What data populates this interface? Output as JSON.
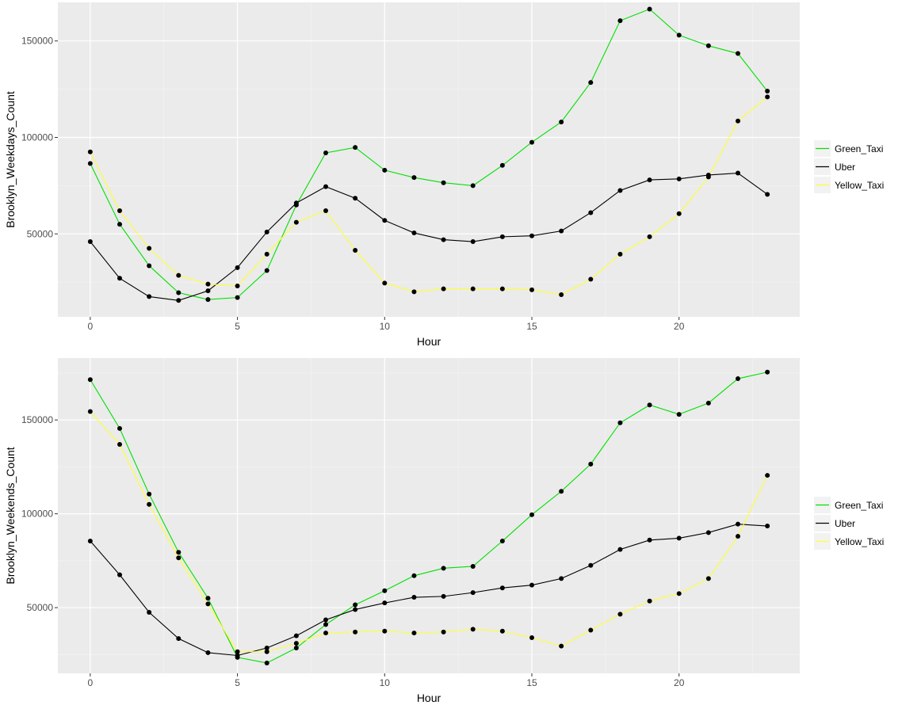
{
  "chart_data": [
    {
      "type": "line",
      "xlabel": "Hour",
      "ylabel": "Brooklyn_Weekdays_Count",
      "xlim": [
        -1.1,
        24.1
      ],
      "ylim": [
        7000,
        170000
      ],
      "xticks": [
        0,
        5,
        10,
        15,
        20
      ],
      "xtick_labels": [
        "0",
        "5",
        "10",
        "15",
        "20"
      ],
      "yticks": [
        50000,
        100000,
        150000
      ],
      "ytick_labels": [
        "50000",
        "100000",
        "150000"
      ],
      "grid": true,
      "legend_position": "right",
      "x": [
        0,
        1,
        2,
        3,
        4,
        5,
        6,
        7,
        8,
        9,
        10,
        11,
        12,
        13,
        14,
        15,
        16,
        17,
        18,
        19,
        20,
        21,
        22,
        23
      ],
      "series": [
        {
          "name": "Green_Taxi",
          "color": "#00e000",
          "values": [
            86500,
            55000,
            33500,
            19500,
            16000,
            17000,
            31000,
            65000,
            92000,
            94800,
            83000,
            79200,
            76500,
            75000,
            85500,
            97500,
            108000,
            128500,
            160500,
            166500,
            153000,
            147500,
            143500,
            124000
          ]
        },
        {
          "name": "Uber",
          "color": "#000000",
          "values": [
            46000,
            27000,
            17500,
            15500,
            20500,
            32500,
            51000,
            66000,
            74500,
            68500,
            57000,
            50500,
            47000,
            46000,
            48500,
            49000,
            51500,
            61000,
            72500,
            78000,
            78500,
            80500,
            81500,
            70500
          ]
        },
        {
          "name": "Yellow_Taxi",
          "color": "#ffff33",
          "values": [
            92500,
            62000,
            42500,
            28500,
            24000,
            23000,
            39500,
            56000,
            62000,
            41500,
            24500,
            20000,
            21500,
            21500,
            21500,
            21000,
            18500,
            26500,
            39500,
            48500,
            60500,
            79500,
            108500,
            121000
          ]
        }
      ]
    },
    {
      "type": "line",
      "xlabel": "Hour",
      "ylabel": "Brooklyn_Weekends_Count",
      "xlim": [
        -1.1,
        24.1
      ],
      "ylim": [
        15000,
        183000
      ],
      "xticks": [
        0,
        5,
        10,
        15,
        20
      ],
      "xtick_labels": [
        "0",
        "5",
        "10",
        "15",
        "20"
      ],
      "yticks": [
        50000,
        100000,
        150000
      ],
      "ytick_labels": [
        "50000",
        "100000",
        "150000"
      ],
      "grid": true,
      "legend_position": "right",
      "x": [
        0,
        1,
        2,
        3,
        4,
        5,
        6,
        7,
        8,
        9,
        10,
        11,
        12,
        13,
        14,
        15,
        16,
        17,
        18,
        19,
        20,
        21,
        22,
        23
      ],
      "series": [
        {
          "name": "Green_Taxi",
          "color": "#00e000",
          "values": [
            171500,
            145500,
            110500,
            79500,
            55000,
            23500,
            20500,
            28500,
            41000,
            51500,
            59000,
            67000,
            71000,
            72000,
            85500,
            99500,
            112000,
            126500,
            148500,
            158000,
            153000,
            159000,
            172000,
            175500
          ]
        },
        {
          "name": "Uber",
          "color": "#000000",
          "values": [
            85500,
            67500,
            47500,
            33500,
            26000,
            24500,
            28500,
            35000,
            43500,
            49000,
            52500,
            55500,
            56000,
            58000,
            60500,
            62000,
            65500,
            72500,
            81000,
            86000,
            87000,
            90000,
            94500,
            93500
          ]
        },
        {
          "name": "Yellow_Taxi",
          "color": "#ffff33",
          "values": [
            154500,
            137000,
            105000,
            76500,
            52000,
            26500,
            26500,
            31000,
            36500,
            37000,
            37500,
            36500,
            37000,
            38500,
            37500,
            34000,
            29500,
            38000,
            46500,
            53500,
            57500,
            65500,
            88000,
            120500
          ]
        }
      ]
    }
  ]
}
